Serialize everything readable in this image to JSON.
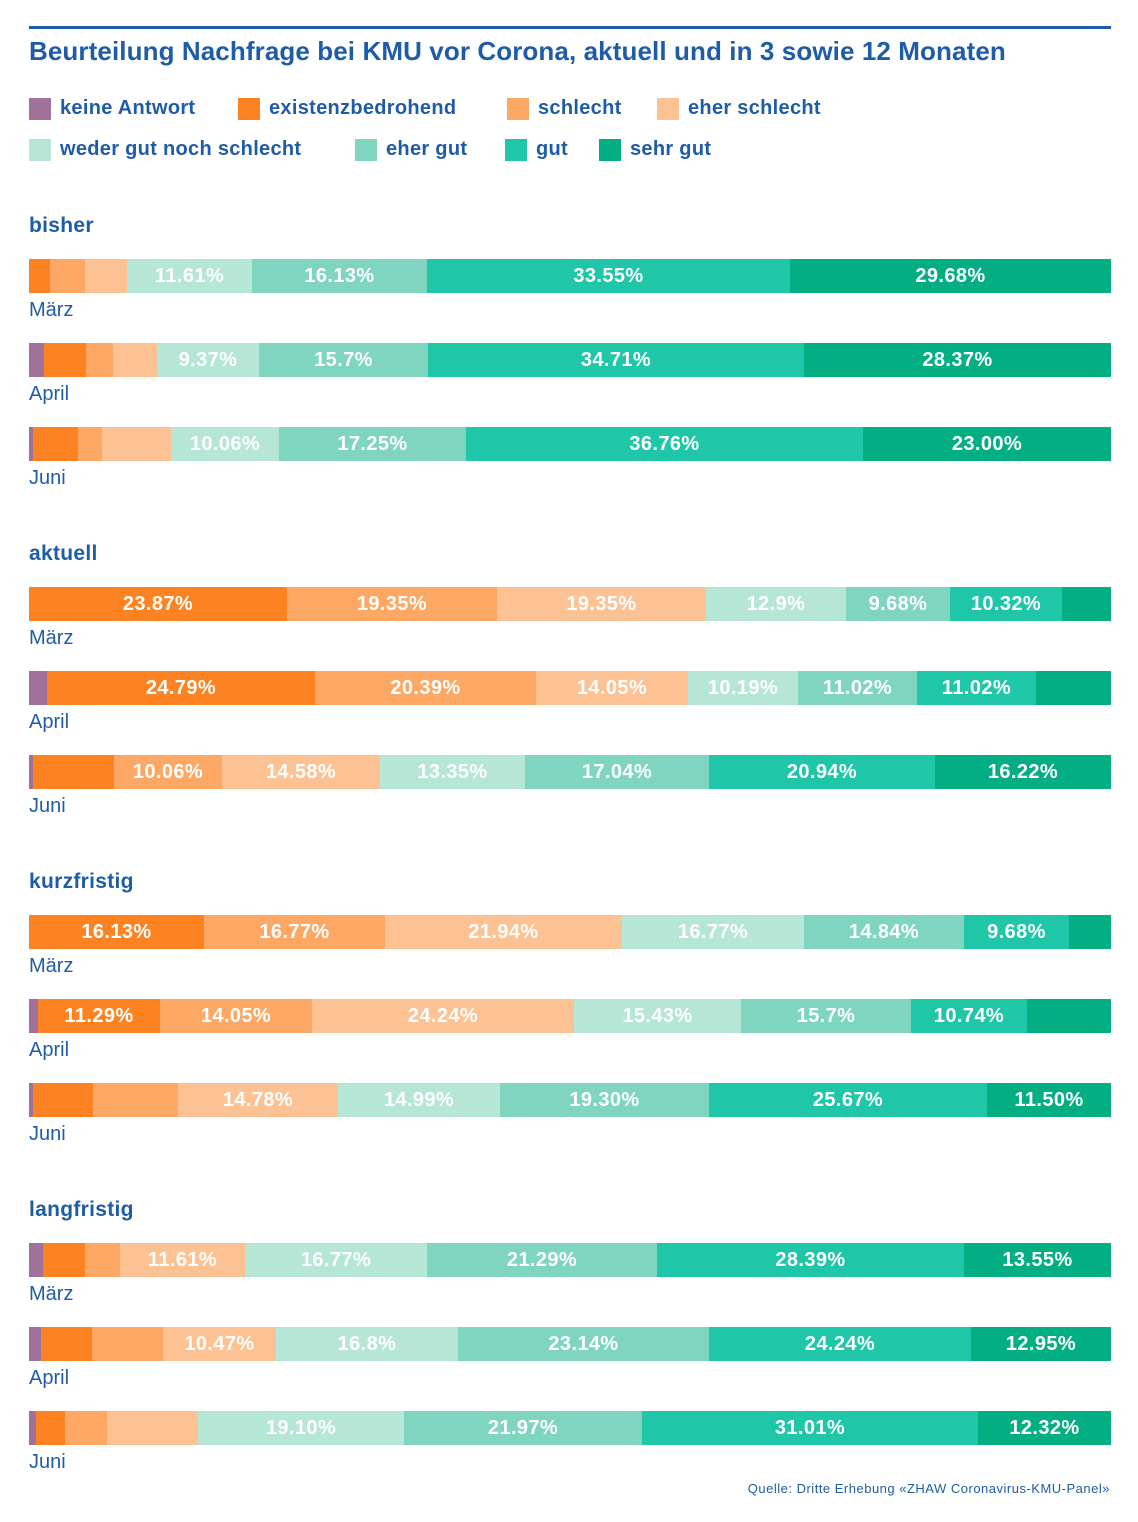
{
  "title": "Beurteilung Nachfrage bei KMU vor Corona, aktuell und in 3 sowie 12 Monaten",
  "source": "Quelle: Dritte Erhebung «ZHAW Coronavirus-KMU-Panel»",
  "chart_data": {
    "type": "bar",
    "orientation": "horizontal",
    "stacked": true,
    "normalized": true,
    "xlim": [
      0,
      100
    ],
    "unit": "%",
    "legend_position": "top-left",
    "categories": [
      {
        "name": "keine Antwort",
        "color": "#a0719a"
      },
      {
        "name": "existenzbedrohend",
        "color": "#fd8221"
      },
      {
        "name": "schlecht",
        "color": "#fca864"
      },
      {
        "name": "eher schlecht",
        "color": "#fdc294"
      },
      {
        "name": "weder gut noch schlecht",
        "color": "#b5e6d6"
      },
      {
        "name": "eher gut",
        "color": "#7fd5bf"
      },
      {
        "name": "gut",
        "color": "#1fc6a7"
      },
      {
        "name": "sehr gut",
        "color": "#03ae83"
      }
    ],
    "groups": [
      {
        "title": "bisher",
        "rows": [
          {
            "label": "März",
            "values": [
              0,
              1.94,
              3.23,
              3.86,
              11.61,
              16.13,
              33.55,
              29.68
            ],
            "labels": [
              "",
              "",
              "",
              "",
              "11.61%",
              "16.13%",
              "33.55%",
              "29.68%"
            ]
          },
          {
            "label": "April",
            "values": [
              1.38,
              3.86,
              2.48,
              4.13,
              9.37,
              15.7,
              34.71,
              28.37
            ],
            "labels": [
              "",
              "",
              "",
              "",
              "9.37%",
              "15.7%",
              "34.71%",
              "28.37%"
            ]
          },
          {
            "label": "Juni",
            "values": [
              0.41,
              4.11,
              2.26,
              6.36,
              10.06,
              17.25,
              36.76,
              23.0
            ],
            "labels": [
              "",
              "",
              "",
              "",
              "10.06%",
              "17.25%",
              "36.76%",
              "23.00%"
            ]
          }
        ]
      },
      {
        "title": "aktuell",
        "rows": [
          {
            "label": "März",
            "values": [
              0,
              23.87,
              19.35,
              19.35,
              12.9,
              9.68,
              10.32,
              4.53
            ],
            "labels": [
              "",
              "23.87%",
              "19.35%",
              "19.35%",
              "12.9%",
              "9.68%",
              "10.32%",
              ""
            ]
          },
          {
            "label": "April",
            "values": [
              1.65,
              24.79,
              20.39,
              14.05,
              10.19,
              11.02,
              11.02,
              6.89
            ],
            "labels": [
              "",
              "24.79%",
              "20.39%",
              "14.05%",
              "10.19%",
              "11.02%",
              "11.02%",
              ""
            ]
          },
          {
            "label": "Juni",
            "values": [
              0.41,
              7.4,
              10.06,
              14.58,
              13.35,
              17.04,
              20.94,
              16.22
            ],
            "labels": [
              "",
              "",
              "10.06%",
              "14.58%",
              "13.35%",
              "17.04%",
              "20.94%",
              "16.22%"
            ]
          }
        ]
      },
      {
        "title": "kurzfristig",
        "rows": [
          {
            "label": "März",
            "values": [
              0,
              16.13,
              16.77,
              21.94,
              16.77,
              14.84,
              9.68,
              3.87
            ],
            "labels": [
              "",
              "16.13%",
              "16.77%",
              "21.94%",
              "16.77%",
              "14.84%",
              "9.68%",
              ""
            ]
          },
          {
            "label": "April",
            "values": [
              0.83,
              11.29,
              14.05,
              24.24,
              15.43,
              15.7,
              10.74,
              7.72
            ],
            "labels": [
              "",
              "11.29%",
              "14.05%",
              "24.24%",
              "15.43%",
              "15.7%",
              "10.74%",
              ""
            ]
          },
          {
            "label": "Juni",
            "values": [
              0.41,
              5.54,
              7.8,
              14.78,
              14.99,
              19.3,
              25.67,
              11.5
            ],
            "labels": [
              "",
              "",
              "",
              "14.78%",
              "14.99%",
              "19.30%",
              "25.67%",
              "11.50%"
            ]
          }
        ]
      },
      {
        "title": "langfristig",
        "rows": [
          {
            "label": "März",
            "values": [
              1.29,
              3.87,
              3.23,
              11.61,
              16.77,
              21.29,
              28.39,
              13.55
            ],
            "labels": [
              "",
              "",
              "",
              "11.61%",
              "16.77%",
              "21.29%",
              "28.39%",
              "13.55%"
            ]
          },
          {
            "label": "April",
            "values": [
              1.1,
              4.68,
              6.61,
              10.47,
              16.8,
              23.14,
              24.24,
              12.95
            ],
            "labels": [
              "",
              "",
              "",
              "10.47%",
              "16.8%",
              "23.14%",
              "24.24%",
              "12.95%"
            ]
          },
          {
            "label": "Juni",
            "values": [
              0.62,
              2.67,
              3.9,
              8.41,
              19.1,
              21.97,
              31.01,
              12.32
            ],
            "labels": [
              "",
              "",
              "",
              "",
              "19.10%",
              "21.97%",
              "31.01%",
              "12.32%"
            ]
          }
        ]
      }
    ]
  }
}
